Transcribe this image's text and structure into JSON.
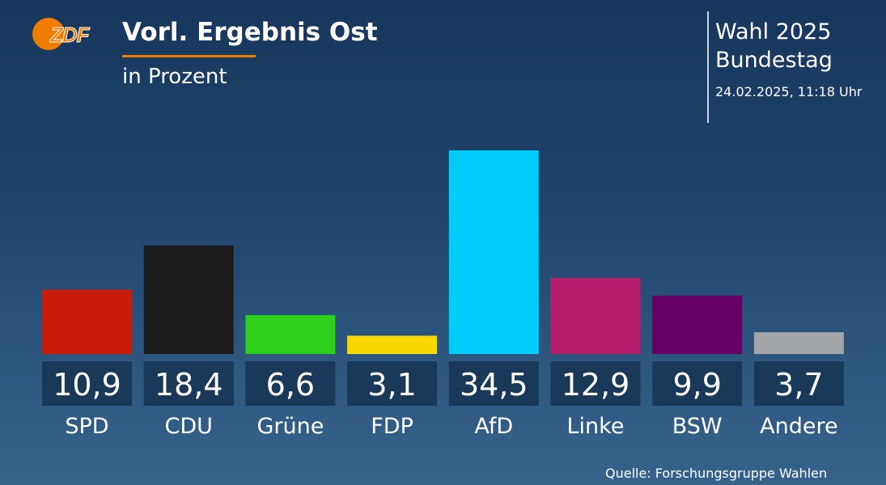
{
  "header": {
    "logo_text": "ZDF",
    "title": "Vorl. Ergebnis Ost",
    "subtitle": "in Prozent"
  },
  "election": {
    "line1": "Wahl 2025",
    "line2": "Bundestag",
    "timestamp": "24.02.2025, 11:18 Uhr"
  },
  "source": "Quelle: Forschungsgruppe Wahlen",
  "chart_data": {
    "type": "bar",
    "title": "Vorl. Ergebnis Ost",
    "subtitle": "in Prozent",
    "categories": [
      "SPD",
      "CDU",
      "Grüne",
      "FDP",
      "AfD",
      "Linke",
      "BSW",
      "Andere"
    ],
    "values": [
      10.9,
      18.4,
      6.6,
      3.1,
      34.5,
      12.9,
      9.9,
      3.7
    ],
    "value_labels": [
      "10,9",
      "18,4",
      "6,6",
      "3,1",
      "34,5",
      "12,9",
      "9,9",
      "3,7"
    ],
    "colors": [
      "#c91b0a",
      "#1c1c1c",
      "#2ecf1b",
      "#f9d800",
      "#00cdfb",
      "#b61d6c",
      "#660066",
      "#a3a6a9"
    ],
    "ylim": [
      0,
      34.5
    ],
    "grid": false,
    "legend": "none"
  }
}
